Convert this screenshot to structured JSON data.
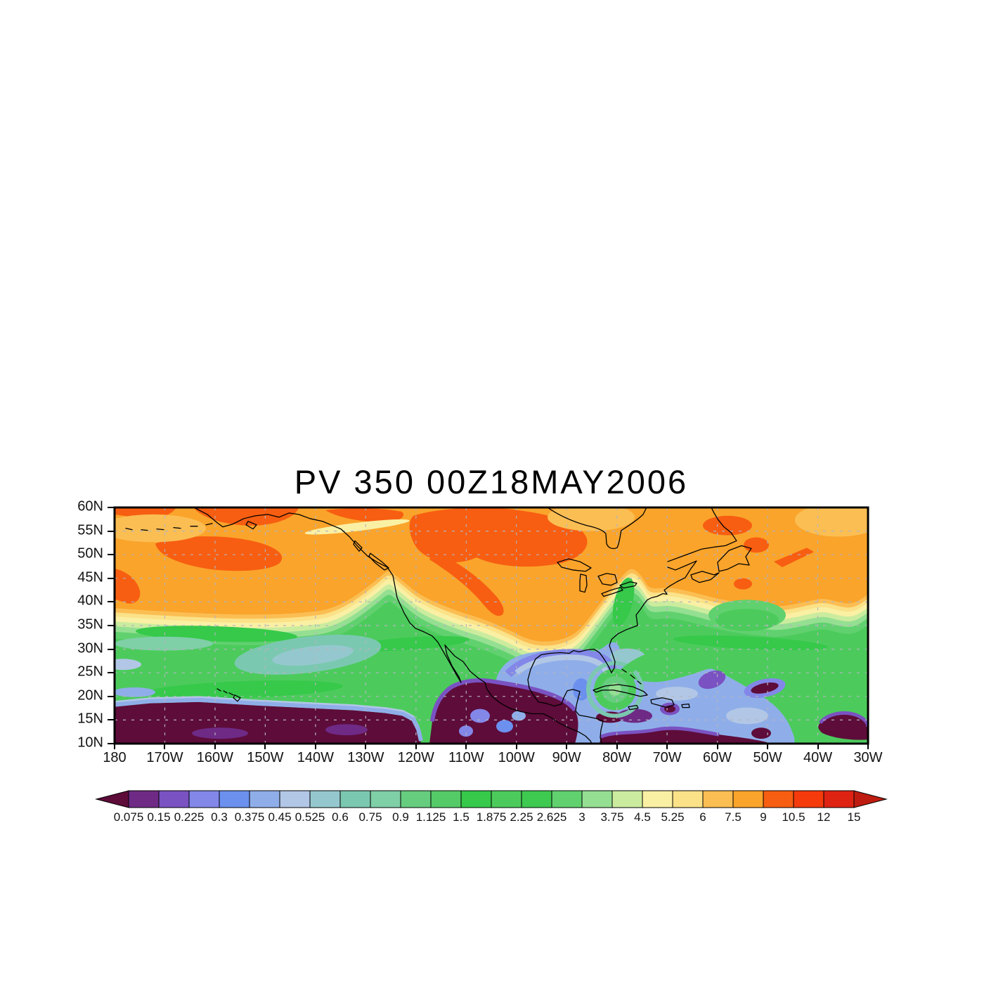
{
  "title": "PV 350 00Z18MAY2006",
  "chart_data": {
    "type": "heatmap",
    "variant": "filled-contour-geographic-map",
    "title": "PV 350 00Z18MAY2006",
    "quantity": "PV",
    "level": "350",
    "valid_time": "00Z18MAY2006",
    "background": "#FFFFFF",
    "x_axis": {
      "position": "bottom",
      "ticks": [
        "180",
        "170W",
        "160W",
        "150W",
        "140W",
        "130W",
        "120W",
        "110W",
        "100W",
        "90W",
        "80W",
        "70W",
        "60W",
        "50W",
        "40W",
        "30W"
      ]
    },
    "y_axis": {
      "position": "left",
      "ticks": [
        "60N",
        "55N",
        "50N",
        "45N",
        "40N",
        "35N",
        "30N",
        "25N",
        "20N",
        "15N",
        "10N"
      ]
    },
    "gridlines": {
      "style": "dashed",
      "color": "#B4B4BE",
      "lon_step_deg": 10,
      "lat_step_deg": 5
    },
    "overlay": {
      "coastlines": "black outlines: Alaska/Aleutians, North America west & east coasts, Baja California, Mexico, Central America, Gulf of Mexico, Florida, Great Lakes, James Bay, Gulf of St Lawrence, Newfoundland, Cuba, Hispaniola, Jamaica, Puerto Rico, Bahamas, Hawaii",
      "coastline_color": "#000000"
    },
    "colorbar": {
      "orientation": "horizontal",
      "levels": [
        0.075,
        0.15,
        0.225,
        0.3,
        0.375,
        0.45,
        0.525,
        0.6,
        0.75,
        0.9,
        1.125,
        1.5,
        1.875,
        2.25,
        2.625,
        3,
        3.75,
        4.5,
        5.25,
        6,
        7.5,
        9,
        10.5,
        12,
        15
      ],
      "level_labels": [
        "0.075",
        "0.15",
        "0.225",
        "0.3",
        "0.375",
        "0.45",
        "0.525",
        "0.6",
        "0.75",
        "0.9",
        "1.125",
        "1.5",
        "1.875",
        "2.25",
        "2.625",
        "3",
        "3.75",
        "4.5",
        "5.25",
        "6",
        "7.5",
        "9",
        "10.5",
        "12",
        "15"
      ],
      "colors": [
        "#5E0C3A",
        "#6E2A85",
        "#7A52C2",
        "#8287E8",
        "#6B90EE",
        "#8FAEE9",
        "#B2C7E6",
        "#95C8CE",
        "#7BC8B0",
        "#7FCFA7",
        "#66CD7E",
        "#55CB68",
        "#36C94A",
        "#4CCB5C",
        "#3EC950",
        "#60D16E",
        "#95DF92",
        "#CBEC9E",
        "#FAF0A4",
        "#FBE289",
        "#FBBE53",
        "#FAA42B",
        "#F75E11",
        "#F53A0C",
        "#DE2313",
        "#BE1C10"
      ],
      "below_min_arrow_color": "#5E0C3A",
      "above_max_arrow_color": "#BE1C10"
    },
    "field_regions": [
      {
        "area": "north of ~40N: Alaska, Canada, North Atlantic",
        "approx_values": "7.5-9",
        "color": "#FAA42B"
      },
      {
        "area": "patches over central Canada, Gulf of Alaska, BC coast, Newfoundland",
        "approx_values": "9-10.5",
        "color": "#F75E11"
      },
      {
        "area": "pale yellow/cream transition band along ~35-45N jet boundary",
        "approx_values": "3.75-6",
        "color": "#FAF0A4"
      },
      {
        "area": "mid-latitude green band ~18N-37N across Pacific and Atlantic with eddies near 150W 28N",
        "approx_values": "1.125-2.625",
        "color": "#4CCB5C"
      },
      {
        "area": "green wedges to ~47N along US west coast (125W) and over Great Lakes / Northeast (78W)",
        "approx_values": "1.5-3",
        "color": "#4CCB5C"
      },
      {
        "area": "deep tropics west of ~120W south of ~18N and over southern Mexico",
        "approx_values": "< 0.075",
        "color": "#5E0C3A"
      },
      {
        "area": "Gulf of Mexico, Caribbean and subtropical Atlantic: mottled blues and purples",
        "approx_values": "0.15-0.6",
        "color": "#8FAEE9"
      },
      {
        "area": "closed green vortex near Cuba ~80W 21N",
        "approx_values": "1.875-3.75",
        "color": "#4CCB5C"
      },
      {
        "area": "dark maroon/purple blobs in SW Atlantic near 30-40W 10-15N",
        "approx_values": "< 0.15",
        "color": "#5E0C3A"
      }
    ]
  }
}
